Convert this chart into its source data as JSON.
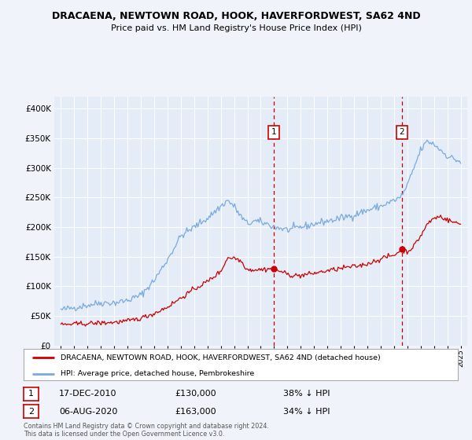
{
  "title": "DRACAENA, NEWTOWN ROAD, HOOK, HAVERFORDWEST, SA62 4ND",
  "subtitle": "Price paid vs. HM Land Registry's House Price Index (HPI)",
  "background_color": "#f0f4fa",
  "plot_bg_color": "#e4ecf7",
  "hpi_color": "#7aaadd",
  "price_color": "#cc0000",
  "vline_color": "#cc0000",
  "sale1_label": "17-DEC-2010",
  "sale1_price": "£130,000",
  "sale1_pct": "38% ↓ HPI",
  "sale2_label": "06-AUG-2020",
  "sale2_price": "£163,000",
  "sale2_pct": "34% ↓ HPI",
  "legend_line1": "DRACAENA, NEWTOWN ROAD, HOOK, HAVERFORDWEST, SA62 4ND (detached house)",
  "legend_line2": "HPI: Average price, detached house, Pembrokeshire",
  "footer": "Contains HM Land Registry data © Crown copyright and database right 2024.\nThis data is licensed under the Open Government Licence v3.0.",
  "ylim": [
    0,
    420000
  ],
  "yticks": [
    0,
    50000,
    100000,
    150000,
    200000,
    250000,
    300000,
    350000,
    400000
  ],
  "sale1_x": 2010.96,
  "sale1_y": 130000,
  "sale2_x": 2020.58,
  "sale2_y": 163000,
  "xlim_start": 1994.5,
  "xlim_end": 2025.5
}
